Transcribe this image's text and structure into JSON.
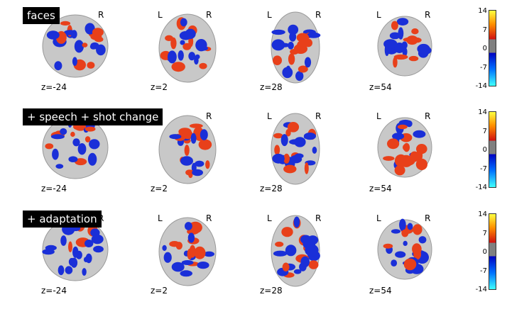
{
  "rows": [
    {
      "title": "faces",
      "zlabels": [
        "z=-24",
        "z=2",
        "z=28",
        "z=54"
      ]
    },
    {
      "title": "+ speech + shot change",
      "zlabels": [
        "z=-24",
        "z=2",
        "z=28",
        "z=54"
      ]
    },
    {
      "title": "+ adaptation",
      "zlabels": [
        "z=-24",
        "z=2",
        "z=28",
        "z=54"
      ]
    }
  ],
  "orientation": {
    "left": "L",
    "right": "R"
  },
  "colorbar": {
    "ticks": [
      "14",
      "7",
      "0",
      "-7",
      "-14"
    ]
  },
  "colors": {
    "positive": "#e8401a",
    "negative": "#1a2fd8",
    "brain": "#c8c8c8"
  }
}
